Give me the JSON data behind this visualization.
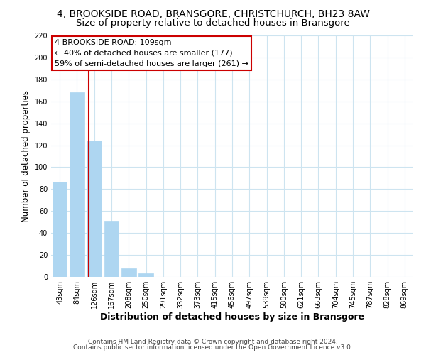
{
  "title": "4, BROOKSIDE ROAD, BRANSGORE, CHRISTCHURCH, BH23 8AW",
  "subtitle": "Size of property relative to detached houses in Bransgore",
  "xlabel": "Distribution of detached houses by size in Bransgore",
  "ylabel": "Number of detached properties",
  "bar_labels": [
    "43sqm",
    "84sqm",
    "126sqm",
    "167sqm",
    "208sqm",
    "250sqm",
    "291sqm",
    "332sqm",
    "373sqm",
    "415sqm",
    "456sqm",
    "497sqm",
    "539sqm",
    "580sqm",
    "621sqm",
    "663sqm",
    "704sqm",
    "745sqm",
    "787sqm",
    "828sqm",
    "869sqm"
  ],
  "bar_heights": [
    87,
    168,
    124,
    51,
    8,
    3,
    0,
    0,
    0,
    0,
    0,
    0,
    0,
    0,
    0,
    0,
    0,
    0,
    0,
    0,
    0
  ],
  "bar_color": "#aed6f1",
  "vline_x": 1.67,
  "vline_color": "#cc0000",
  "ylim": [
    0,
    220
  ],
  "yticks": [
    0,
    20,
    40,
    60,
    80,
    100,
    120,
    140,
    160,
    180,
    200,
    220
  ],
  "annotation_line1": "4 BROOKSIDE ROAD: 109sqm",
  "annotation_line2": "← 40% of detached houses are smaller (177)",
  "annotation_line3": "59% of semi-detached houses are larger (261) →",
  "footer1": "Contains HM Land Registry data © Crown copyright and database right 2024.",
  "footer2": "Contains public sector information licensed under the Open Government Licence v3.0.",
  "title_fontsize": 10,
  "subtitle_fontsize": 9.5,
  "tick_fontsize": 7,
  "ylabel_fontsize": 8.5,
  "xlabel_fontsize": 9,
  "footer_fontsize": 6.5,
  "annotation_fontsize": 8,
  "grid_color": "#cde4f0"
}
